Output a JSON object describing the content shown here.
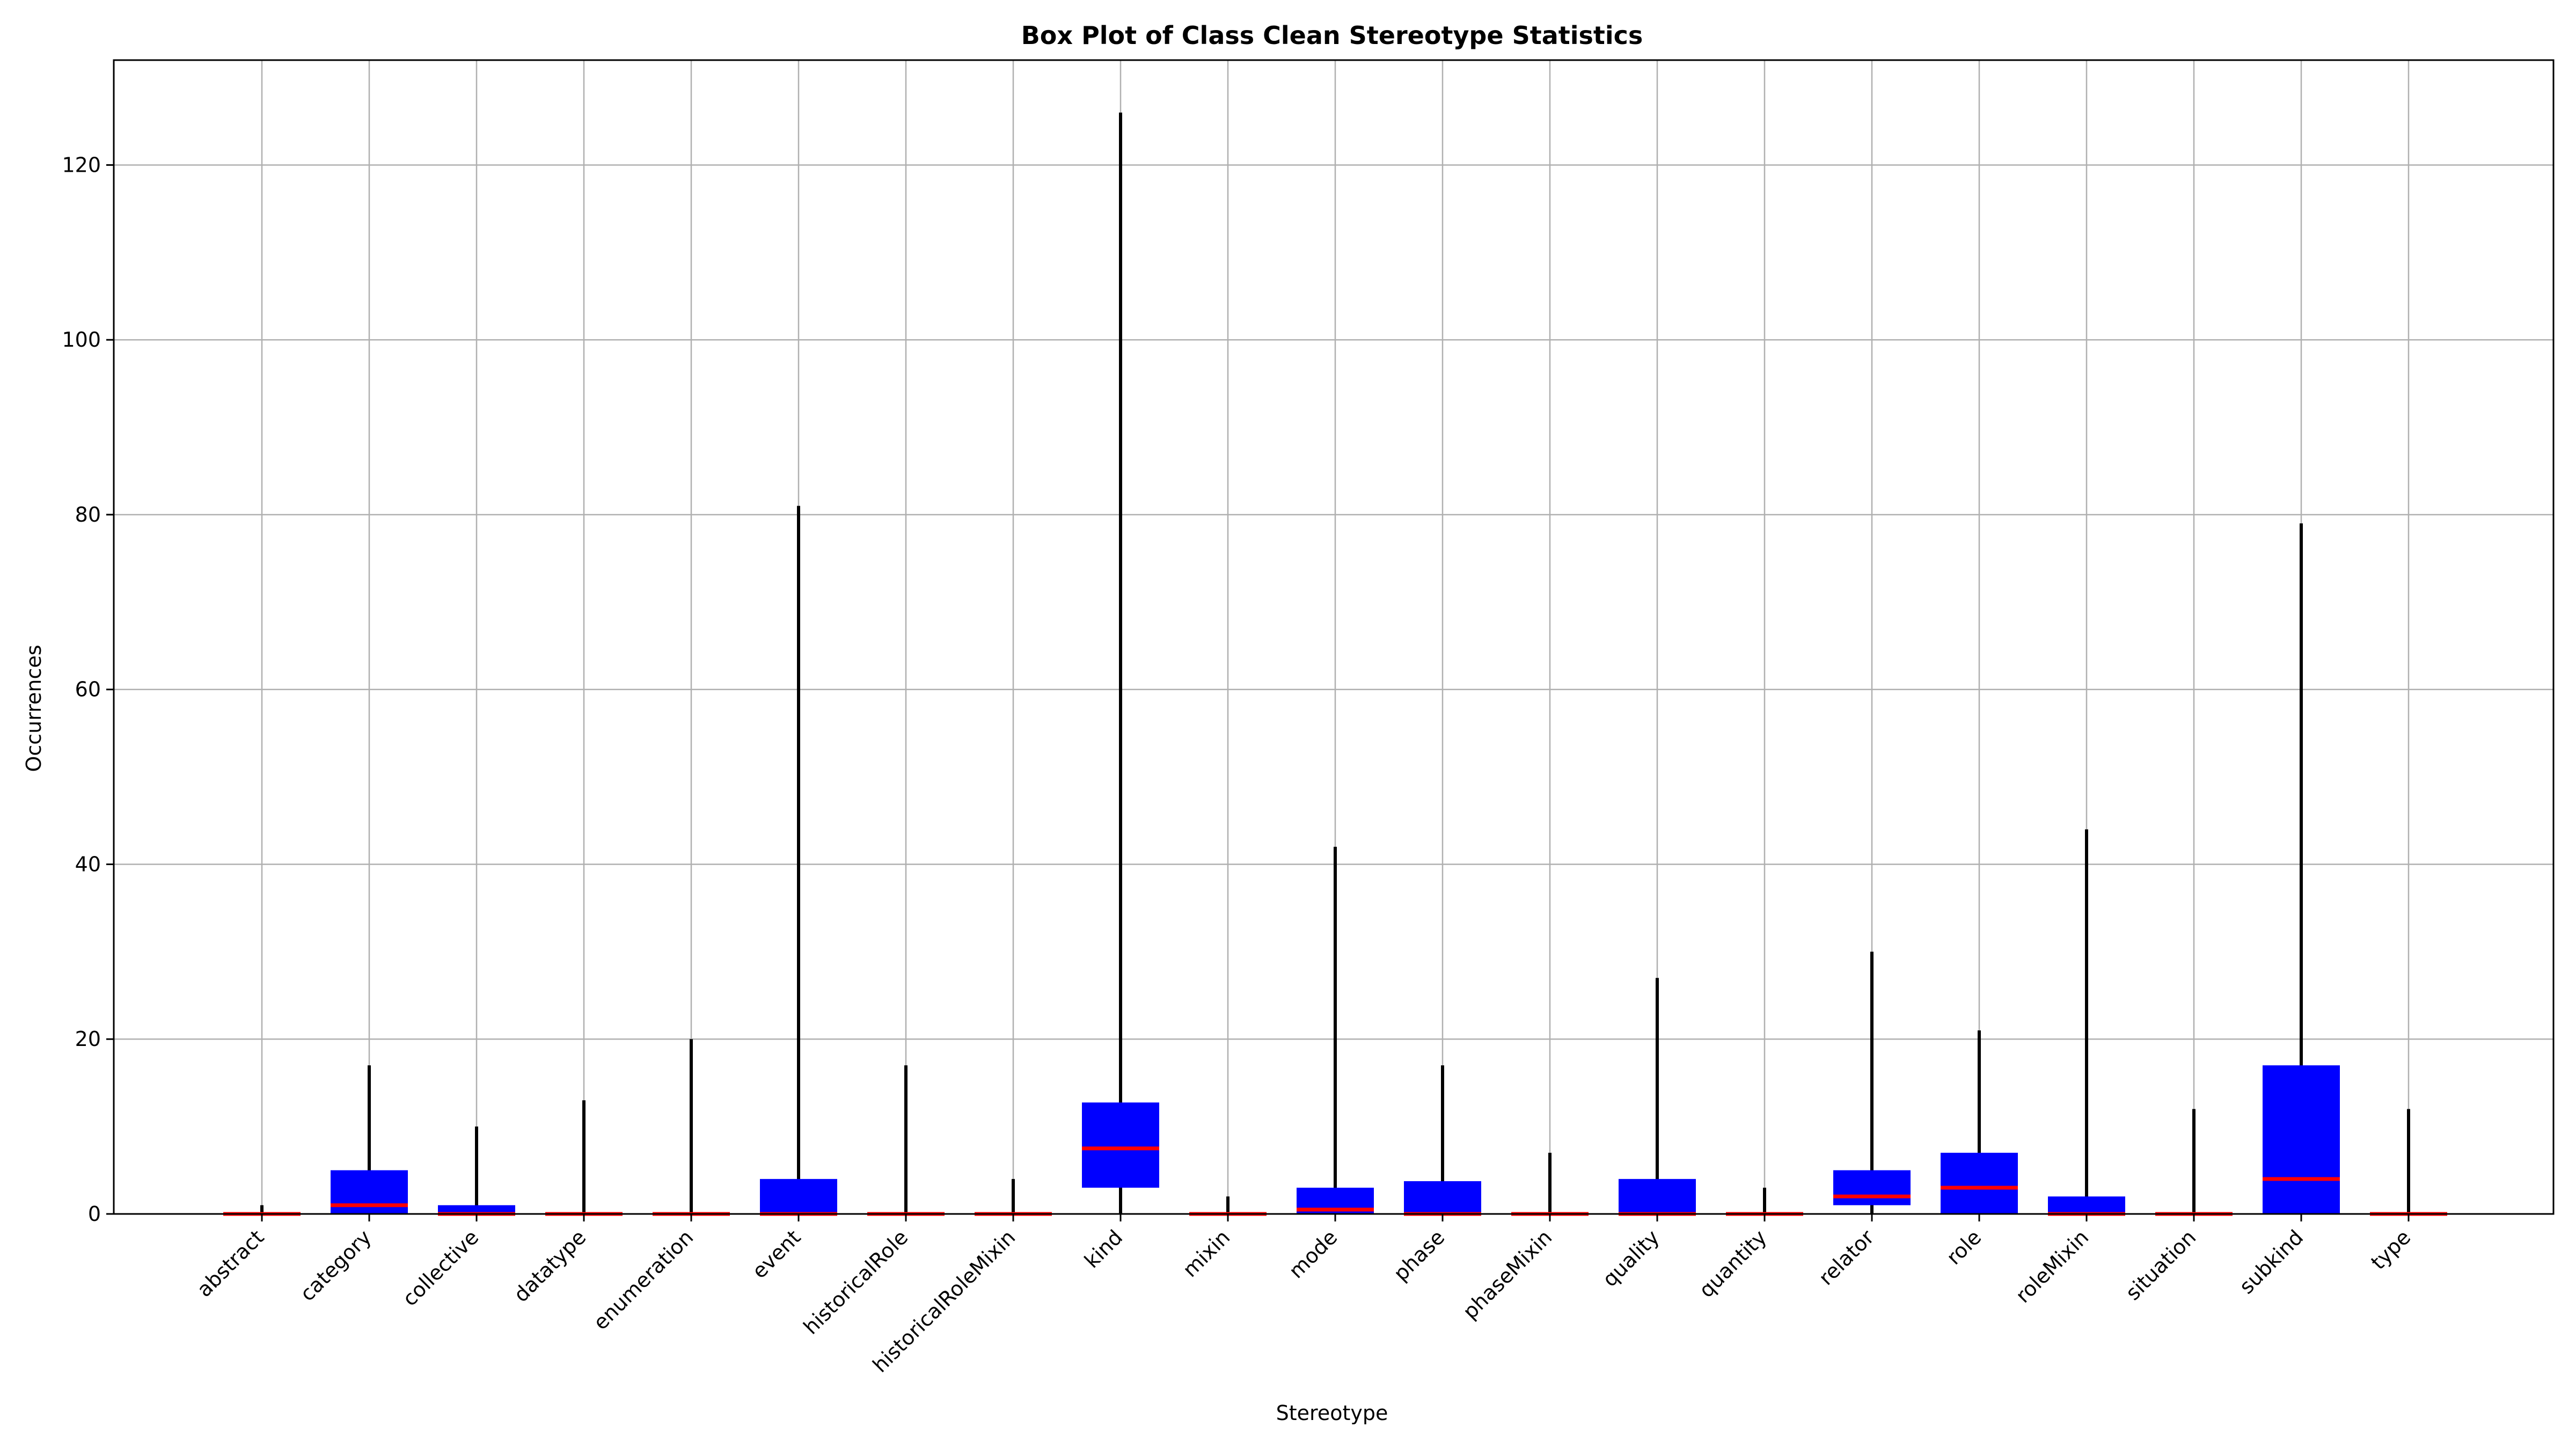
{
  "chart_data": {
    "type": "box",
    "title": "Box Plot of Class Clean Stereotype Statistics",
    "xlabel": "Stereotype",
    "ylabel": "Occurrences",
    "ylim": [
      0,
      132
    ],
    "yticks": [
      0,
      20,
      40,
      60,
      80,
      100,
      120
    ],
    "grid": true,
    "colors": {
      "box": "#0000ff",
      "median": "#ff0000",
      "whisker": "#000000",
      "grid": "#b0b0b0"
    },
    "categories": [
      "abstract",
      "category",
      "collective",
      "datatype",
      "enumeration",
      "event",
      "historicalRole",
      "historicalRoleMixin",
      "kind",
      "mixin",
      "mode",
      "phase",
      "phaseMixin",
      "quality",
      "quantity",
      "relator",
      "role",
      "roleMixin",
      "situation",
      "subkind",
      "type"
    ],
    "boxes": [
      {
        "label": "abstract",
        "min": 0,
        "q1": 0,
        "median": 0,
        "q3": 0,
        "max": 1
      },
      {
        "label": "category",
        "min": 0,
        "q1": 0,
        "median": 1,
        "q3": 5,
        "max": 17
      },
      {
        "label": "collective",
        "min": 0,
        "q1": 0,
        "median": 0,
        "q3": 1,
        "max": 10
      },
      {
        "label": "datatype",
        "min": 0,
        "q1": 0,
        "median": 0,
        "q3": 0,
        "max": 13
      },
      {
        "label": "enumeration",
        "min": 0,
        "q1": 0,
        "median": 0,
        "q3": 0,
        "max": 20
      },
      {
        "label": "event",
        "min": 0,
        "q1": 0,
        "median": 0,
        "q3": 4,
        "max": 81
      },
      {
        "label": "historicalRole",
        "min": 0,
        "q1": 0,
        "median": 0,
        "q3": 0,
        "max": 17
      },
      {
        "label": "historicalRoleMixin",
        "min": 0,
        "q1": 0,
        "median": 0,
        "q3": 0,
        "max": 4
      },
      {
        "label": "kind",
        "min": 0,
        "q1": 3,
        "median": 7.5,
        "q3": 12.75,
        "max": 126
      },
      {
        "label": "mixin",
        "min": 0,
        "q1": 0,
        "median": 0,
        "q3": 0,
        "max": 2
      },
      {
        "label": "mode",
        "min": 0,
        "q1": 0,
        "median": 0.5,
        "q3": 3,
        "max": 42
      },
      {
        "label": "phase",
        "min": 0,
        "q1": 0,
        "median": 0,
        "q3": 3.75,
        "max": 17
      },
      {
        "label": "phaseMixin",
        "min": 0,
        "q1": 0,
        "median": 0,
        "q3": 0,
        "max": 7
      },
      {
        "label": "quality",
        "min": 0,
        "q1": 0,
        "median": 0,
        "q3": 4,
        "max": 27
      },
      {
        "label": "quantity",
        "min": 0,
        "q1": 0,
        "median": 0,
        "q3": 0,
        "max": 3
      },
      {
        "label": "relator",
        "min": 0,
        "q1": 1,
        "median": 2,
        "q3": 5,
        "max": 30
      },
      {
        "label": "role",
        "min": 0,
        "q1": 0,
        "median": 3,
        "q3": 7,
        "max": 21
      },
      {
        "label": "roleMixin",
        "min": 0,
        "q1": 0,
        "median": 0,
        "q3": 2,
        "max": 44
      },
      {
        "label": "situation",
        "min": 0,
        "q1": 0,
        "median": 0,
        "q3": 0,
        "max": 12
      },
      {
        "label": "subkind",
        "min": 0,
        "q1": 0,
        "median": 4,
        "q3": 17,
        "max": 79
      },
      {
        "label": "type",
        "min": 0,
        "q1": 0,
        "median": 0,
        "q3": 0,
        "max": 12
      }
    ]
  }
}
